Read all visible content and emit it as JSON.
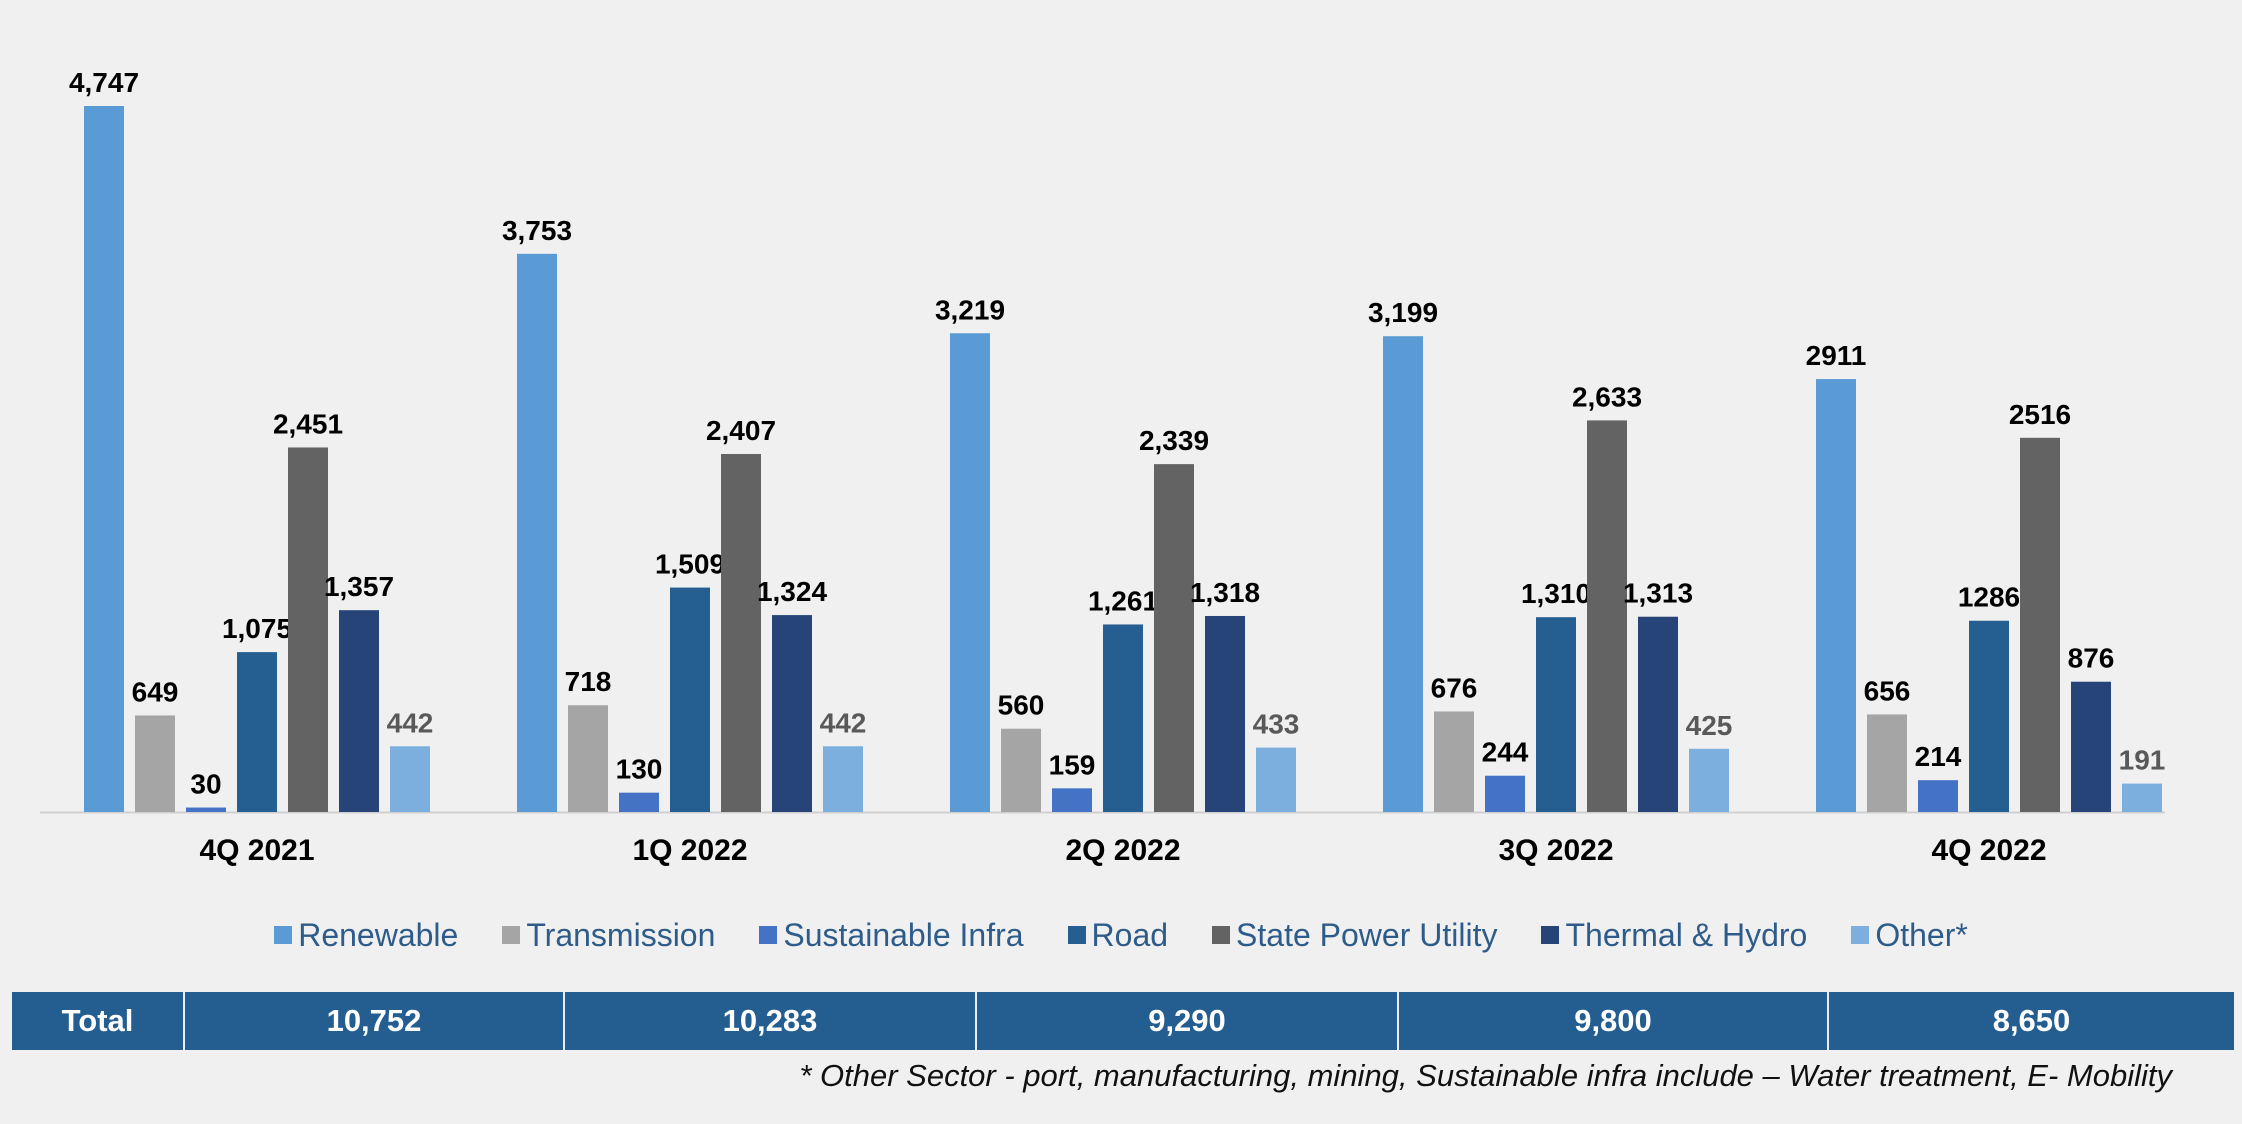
{
  "chart_data": {
    "type": "bar",
    "categories": [
      "4Q 2021",
      "1Q 2022",
      "2Q 2022",
      "3Q 2022",
      "4Q 2022"
    ],
    "series": [
      {
        "name": "Renewable",
        "color": "#5b9bd5",
        "values": [
          4747,
          3753,
          3219,
          3199,
          2911
        ],
        "labels": [
          "4,747",
          "3,753",
          "3,219",
          "3,199",
          "2911"
        ]
      },
      {
        "name": "Transmission",
        "color": "#a5a5a5",
        "values": [
          649,
          718,
          560,
          676,
          656
        ],
        "labels": [
          "649",
          "718",
          "560",
          "676",
          "656"
        ]
      },
      {
        "name": "Sustainable Infra",
        "color": "#4472c4",
        "values": [
          30,
          130,
          159,
          244,
          214
        ],
        "labels": [
          "30",
          "130",
          "159",
          "244",
          "214"
        ]
      },
      {
        "name": "Road",
        "color": "#255e91",
        "values": [
          1075,
          1509,
          1261,
          1310,
          1286
        ],
        "labels": [
          "1,075",
          "1,509",
          "1,261",
          "1,310",
          "1286"
        ]
      },
      {
        "name": "State Power Utility",
        "color": "#636363",
        "values": [
          2451,
          2407,
          2339,
          2633,
          2516
        ],
        "labels": [
          "2,451",
          "2,407",
          "2,339",
          "2,633",
          "2516"
        ]
      },
      {
        "name": "Thermal & Hydro",
        "color": "#264478",
        "values": [
          1357,
          1324,
          1318,
          1313,
          876
        ],
        "labels": [
          "1,357",
          "1,324",
          "1,318",
          "1,313",
          "876"
        ]
      },
      {
        "name": "Other*",
        "color": "#7cafdd",
        "label_color": "#595959",
        "values": [
          442,
          442,
          433,
          425,
          191
        ],
        "labels": [
          "442",
          "442",
          "433",
          "425",
          "191"
        ]
      }
    ],
    "grid": false,
    "legend_position": "bottom",
    "title": "",
    "xlabel": "",
    "ylabel": ""
  },
  "totals": {
    "label": "Total",
    "values": [
      "10,752",
      "10,283",
      "9,290",
      "9,800",
      "8,650"
    ]
  },
  "footnote": "* Other Sector -  port, manufacturing, mining, Sustainable infra include – Water treatment, E- Mobility"
}
